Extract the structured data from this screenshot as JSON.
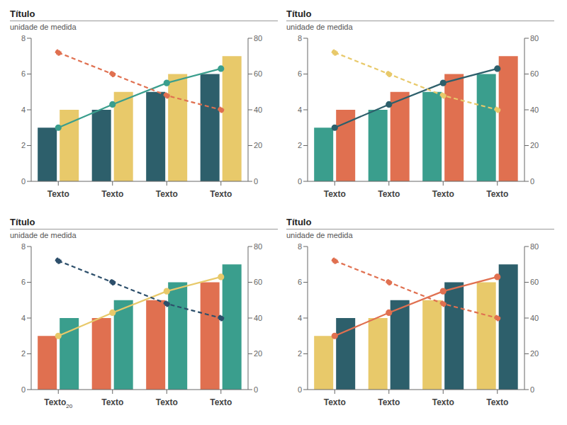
{
  "chart_data": [
    {
      "type": "combo",
      "title": "Título",
      "subtitle": "unidade de medida",
      "categories": [
        "Texto",
        "Texto",
        "Texto",
        "Texto"
      ],
      "series": [
        {
          "type": "bar",
          "color": "#2d5f6b",
          "values": [
            3,
            4,
            5,
            6
          ]
        },
        {
          "type": "bar",
          "color": "#e8c96a",
          "values": [
            4,
            5,
            6,
            7
          ]
        },
        {
          "type": "line",
          "color": "#3a9e8d",
          "line_style": "solid",
          "marker": "circle",
          "values": [
            3,
            4.3,
            5.5,
            6.3
          ]
        },
        {
          "type": "line",
          "color": "#e07050",
          "line_style": "dashed",
          "marker": "circle",
          "values": [
            7.2,
            6.0,
            4.8,
            4.0
          ]
        }
      ],
      "ylim": [
        0,
        8
      ],
      "yticks": [
        0,
        2,
        4,
        6,
        8
      ],
      "y2lim": [
        0,
        80
      ],
      "y2ticks": [
        0,
        20,
        40,
        60,
        80
      ],
      "grid": false
    },
    {
      "type": "combo",
      "title": "Título",
      "subtitle": "unidade de medida",
      "categories": [
        "Texto",
        "Texto",
        "Texto",
        "Texto"
      ],
      "series": [
        {
          "type": "bar",
          "color": "#3a9e8d",
          "values": [
            3,
            4,
            5,
            6
          ]
        },
        {
          "type": "bar",
          "color": "#e07050",
          "values": [
            4,
            5,
            6,
            7
          ]
        },
        {
          "type": "line",
          "color": "#2d5f6b",
          "line_style": "solid",
          "marker": "circle",
          "values": [
            3,
            4.3,
            5.5,
            6.3
          ]
        },
        {
          "type": "line",
          "color": "#e8c96a",
          "line_style": "dashed",
          "marker": "circle",
          "values": [
            7.2,
            6.0,
            4.8,
            4.0
          ]
        }
      ],
      "ylim": [
        0,
        8
      ],
      "yticks": [
        0,
        2,
        4,
        6,
        8
      ],
      "y2lim": [
        0,
        80
      ],
      "y2ticks": [
        0,
        20,
        40,
        60,
        80
      ],
      "grid": false
    },
    {
      "type": "combo",
      "title": "Título",
      "subtitle": "unidade de medida",
      "annotation": "20",
      "categories": [
        "Texto",
        "Texto",
        "Texto",
        "Texto"
      ],
      "series": [
        {
          "type": "bar",
          "color": "#e07050",
          "values": [
            3,
            4,
            5,
            6
          ]
        },
        {
          "type": "bar",
          "color": "#3a9e8d",
          "values": [
            4,
            5,
            6,
            7
          ]
        },
        {
          "type": "line",
          "color": "#e8c96a",
          "line_style": "solid",
          "marker": "circle",
          "values": [
            3,
            4.3,
            5.5,
            6.3
          ]
        },
        {
          "type": "line",
          "color": "#2d4f6b",
          "line_style": "dashed",
          "marker": "circle",
          "values": [
            7.2,
            6.0,
            4.8,
            4.0
          ]
        }
      ],
      "ylim": [
        0,
        8
      ],
      "yticks": [
        0,
        2,
        4,
        6,
        8
      ],
      "y2lim": [
        0,
        80
      ],
      "y2ticks": [
        0,
        20,
        40,
        60,
        80
      ],
      "grid": false
    },
    {
      "type": "combo",
      "title": "Título",
      "subtitle": "unidade de medida",
      "categories": [
        "Texto",
        "Texto",
        "Texto",
        "Texto"
      ],
      "series": [
        {
          "type": "bar",
          "color": "#e8c96a",
          "values": [
            3,
            4,
            5,
            6
          ]
        },
        {
          "type": "bar",
          "color": "#2d5f6b",
          "values": [
            4,
            5,
            6,
            7
          ]
        },
        {
          "type": "line",
          "color": "#e07050",
          "line_style": "solid",
          "marker": "circle",
          "values": [
            3,
            4.3,
            5.5,
            6.3
          ]
        },
        {
          "type": "line",
          "color": "#e07050",
          "line_style": "dashed",
          "marker": "circle",
          "values": [
            7.2,
            6.0,
            4.8,
            4.0
          ]
        }
      ],
      "ylim": [
        0,
        8
      ],
      "yticks": [
        0,
        2,
        4,
        6,
        8
      ],
      "y2lim": [
        0,
        80
      ],
      "y2ticks": [
        0,
        20,
        40,
        60,
        80
      ],
      "grid": false
    }
  ]
}
